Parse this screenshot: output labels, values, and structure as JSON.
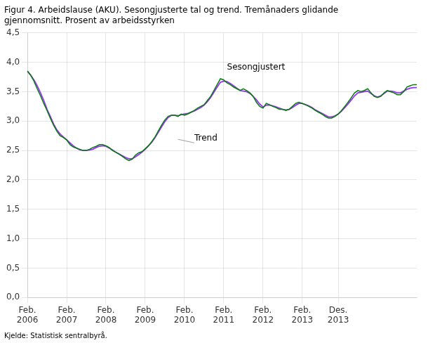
{
  "chart_data": {
    "type": "line",
    "title": [
      "Figur 4. Arbeidslause (AKU). Sesongjusterte tal og trend. Tremånaders glidande",
      "gjennomsnitt. Prosent av arbeidsstyrken"
    ],
    "footer": "Kjelde: Statistisk sentralbyrå.",
    "categories": [
      "Feb.\n2006",
      null,
      null,
      null,
      null,
      null,
      null,
      null,
      null,
      null,
      null,
      null,
      "Feb.\n2007",
      null,
      null,
      null,
      null,
      null,
      null,
      null,
      null,
      null,
      null,
      null,
      "Feb.\n2008",
      null,
      null,
      null,
      null,
      null,
      null,
      null,
      null,
      null,
      null,
      null,
      "Feb.\n2009",
      null,
      null,
      null,
      null,
      null,
      null,
      null,
      null,
      null,
      null,
      null,
      "Feb.\n2010",
      null,
      null,
      null,
      null,
      null,
      null,
      null,
      null,
      null,
      null,
      null,
      "Feb.\n2011",
      null,
      null,
      null,
      null,
      null,
      null,
      null,
      null,
      null,
      null,
      null,
      "Feb.\n2012",
      null,
      null,
      null,
      null,
      null,
      null,
      null,
      null,
      null,
      null,
      null,
      "Feb.\n2013",
      null,
      null,
      null,
      null,
      null,
      null,
      null,
      null,
      null,
      null,
      "Des.\n2013",
      null,
      null,
      null,
      null,
      null,
      null,
      null,
      null,
      null,
      null,
      null,
      null,
      null,
      null,
      null,
      null,
      null,
      null,
      null,
      null,
      null,
      null,
      null,
      null
    ],
    "series": [
      {
        "name": "Sesongjustert",
        "color": "#008000",
        "values": [
          3.85,
          3.78,
          3.68,
          3.55,
          3.43,
          3.3,
          3.18,
          3.05,
          2.93,
          2.83,
          2.75,
          2.72,
          2.68,
          2.6,
          2.56,
          2.54,
          2.52,
          2.5,
          2.5,
          2.52,
          2.55,
          2.57,
          2.6,
          2.6,
          2.58,
          2.55,
          2.5,
          2.47,
          2.44,
          2.4,
          2.36,
          2.33,
          2.35,
          2.42,
          2.46,
          2.48,
          2.53,
          2.58,
          2.65,
          2.73,
          2.83,
          2.93,
          3.02,
          3.08,
          3.1,
          3.1,
          3.08,
          3.12,
          3.1,
          3.12,
          3.15,
          3.18,
          3.22,
          3.25,
          3.28,
          3.35,
          3.42,
          3.52,
          3.62,
          3.72,
          3.7,
          3.65,
          3.62,
          3.58,
          3.55,
          3.52,
          3.55,
          3.52,
          3.48,
          3.42,
          3.32,
          3.25,
          3.22,
          3.3,
          3.28,
          3.25,
          3.23,
          3.2,
          3.2,
          3.18,
          3.2,
          3.25,
          3.3,
          3.32,
          3.3,
          3.28,
          3.25,
          3.22,
          3.18,
          3.15,
          3.12,
          3.08,
          3.05,
          3.05,
          3.08,
          3.12,
          3.18,
          3.25,
          3.32,
          3.4,
          3.48,
          3.52,
          3.5,
          3.52,
          3.55,
          3.48,
          3.42,
          3.4,
          3.42,
          3.48,
          3.52,
          3.5,
          3.48,
          3.45,
          3.45,
          3.5,
          3.58,
          3.6,
          3.62,
          3.62
        ]
      },
      {
        "name": "Trend",
        "color": "#9B30FF",
        "values": [
          3.85,
          3.78,
          3.7,
          3.6,
          3.48,
          3.35,
          3.2,
          3.08,
          2.95,
          2.85,
          2.78,
          2.73,
          2.68,
          2.63,
          2.58,
          2.54,
          2.51,
          2.5,
          2.5,
          2.51,
          2.52,
          2.55,
          2.57,
          2.58,
          2.57,
          2.54,
          2.51,
          2.47,
          2.44,
          2.41,
          2.38,
          2.36,
          2.36,
          2.39,
          2.43,
          2.47,
          2.52,
          2.58,
          2.64,
          2.72,
          2.81,
          2.9,
          2.99,
          3.06,
          3.1,
          3.1,
          3.09,
          3.11,
          3.12,
          3.13,
          3.15,
          3.17,
          3.2,
          3.23,
          3.27,
          3.33,
          3.4,
          3.49,
          3.58,
          3.66,
          3.68,
          3.67,
          3.64,
          3.6,
          3.56,
          3.52,
          3.51,
          3.5,
          3.47,
          3.42,
          3.36,
          3.29,
          3.24,
          3.27,
          3.27,
          3.26,
          3.24,
          3.22,
          3.2,
          3.19,
          3.2,
          3.23,
          3.27,
          3.3,
          3.3,
          3.28,
          3.26,
          3.23,
          3.19,
          3.16,
          3.13,
          3.1,
          3.07,
          3.07,
          3.09,
          3.12,
          3.17,
          3.23,
          3.29,
          3.36,
          3.43,
          3.48,
          3.49,
          3.5,
          3.51,
          3.47,
          3.43,
          3.41,
          3.43,
          3.47,
          3.51,
          3.51,
          3.5,
          3.48,
          3.48,
          3.51,
          3.54,
          3.56,
          3.57,
          3.57
        ]
      }
    ],
    "ylim": [
      0.0,
      4.5
    ],
    "yticks": [
      {
        "value": 0.0,
        "label": "0,0"
      },
      {
        "value": 0.5,
        "label": "0,5"
      },
      {
        "value": 1.0,
        "label": "1,0"
      },
      {
        "value": 1.5,
        "label": "1,5"
      },
      {
        "value": 2.0,
        "label": "2,0"
      },
      {
        "value": 2.5,
        "label": "2,5"
      },
      {
        "value": 3.0,
        "label": "3,0"
      },
      {
        "value": 3.5,
        "label": "3,5"
      },
      {
        "value": 4.0,
        "label": "4,0"
      },
      {
        "value": 4.5,
        "label": "4,5"
      }
    ],
    "grid": true,
    "annotations": [
      {
        "text": "Sesongjustert",
        "x": 61,
        "y": 3.84
      },
      {
        "text": "Trend",
        "x": 51,
        "y": 2.63,
        "point": [
          46,
          2.69
        ]
      }
    ]
  }
}
